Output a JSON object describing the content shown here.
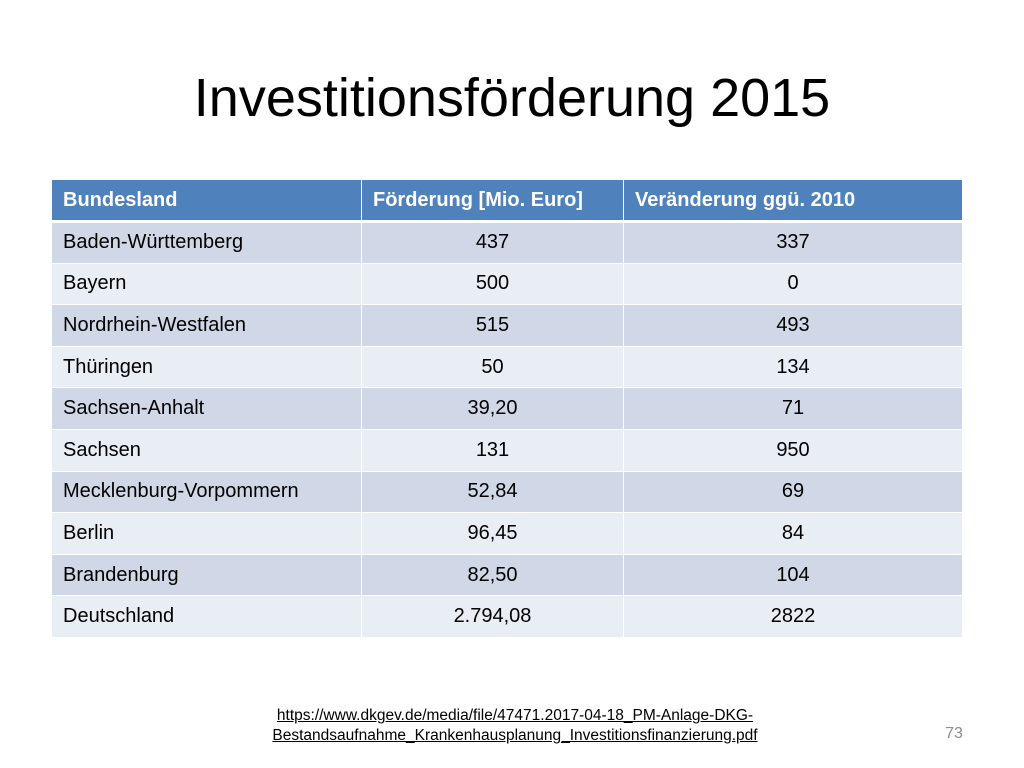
{
  "slide": {
    "title": "Investitionsförderung 2015",
    "page_number": "73"
  },
  "table": {
    "headers": [
      "Bundesland",
      "Förderung [Mio. Euro]",
      "Veränderung ggü. 2010"
    ],
    "rows": [
      [
        "Baden-Württemberg",
        "437",
        "337"
      ],
      [
        "Bayern",
        "500",
        "0"
      ],
      [
        "Nordrhein-Westfalen",
        "515",
        "493"
      ],
      [
        "Thüringen",
        "50",
        "134"
      ],
      [
        "Sachsen-Anhalt",
        "39,20",
        "71"
      ],
      [
        "Sachsen",
        "131",
        "950"
      ],
      [
        "Mecklenburg-Vorpommern",
        "52,84",
        "69"
      ],
      [
        "Berlin",
        "96,45",
        "84"
      ],
      [
        "Brandenburg",
        "82,50",
        "104"
      ],
      [
        "Deutschland",
        "2.794,08",
        "2822"
      ]
    ]
  },
  "source": {
    "line1": "https://www.dkgev.de/media/file/47471.2017-04-18_PM-Anlage-DKG-",
    "line2": "Bestandsaufnahme_Krankenhausplanung_Investitionsfinanzierung.pdf"
  },
  "colors": {
    "header_bg": "#4f81bd",
    "row_odd_bg": "#d0d8e8",
    "row_even_bg": "#e9edf4",
    "page_number": "#8c8c8c"
  }
}
